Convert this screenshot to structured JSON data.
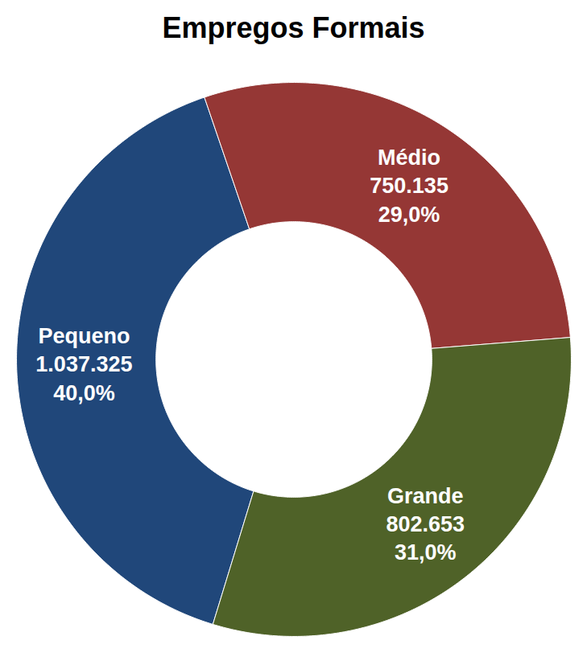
{
  "chart_data": {
    "type": "pie",
    "title": "Empregos Formais",
    "categories": [
      "Pequeno",
      "Médio",
      "Grande"
    ],
    "values": [
      1037325,
      750135,
      802653
    ],
    "value_labels": [
      "1.037.325",
      "750.135",
      "802.653"
    ],
    "percentages": [
      40.0,
      29.0,
      31.0
    ],
    "percentage_labels": [
      "40,0%",
      "29,0%",
      "31,0%"
    ],
    "colors": [
      "#20477a",
      "#953735",
      "#4f6228"
    ],
    "data_labels": true
  }
}
